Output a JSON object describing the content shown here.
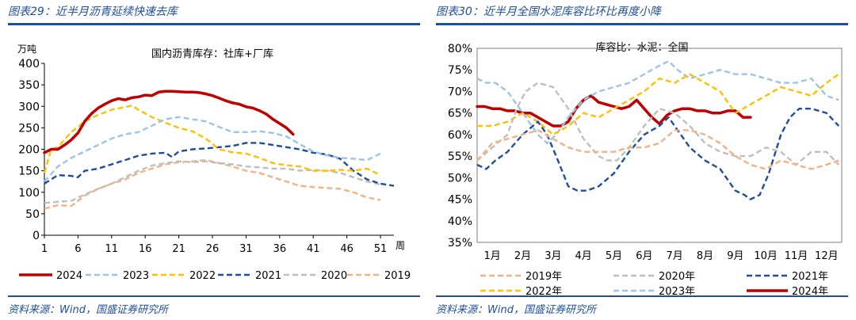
{
  "colors": {
    "brand": "#1f4e9a",
    "s2024": "#c00000",
    "s2023": "#9dc3e6",
    "s2022": "#ffc000",
    "s2021": "#1f4e9a",
    "s2020": "#bfbfbf",
    "s2019": "#f4b183"
  },
  "left": {
    "fig_title": "图表29：近半月沥青延续快速去库",
    "source": "资料来源：Wind，国盛证券研究所"
  },
  "right": {
    "fig_title": "图表30：近半月全国水泥库容比环比再度小降",
    "source": "资料来源：Wind，国盛证券研究所"
  },
  "chart_data": [
    {
      "type": "line",
      "title": "国内沥青库存：社库+厂库",
      "ylabel": "万吨",
      "xlabel": "周",
      "ylim": [
        0,
        400
      ],
      "yticks": [
        0,
        50,
        100,
        150,
        200,
        250,
        300,
        350,
        400
      ],
      "xlim": [
        1,
        53
      ],
      "xticks": [
        1,
        6,
        11,
        16,
        21,
        26,
        31,
        36,
        41,
        46,
        51
      ],
      "legend": "bottom",
      "series": [
        {
          "name": "2024",
          "color": "#c00000",
          "style": "solid",
          "width": 3.5,
          "x": [
            1,
            2,
            3,
            4,
            5,
            6,
            7,
            8,
            9,
            10,
            11,
            12,
            13,
            14,
            15,
            16,
            17,
            18,
            19,
            20,
            21,
            22,
            23,
            24,
            25,
            26,
            27,
            28,
            29,
            30,
            31,
            32,
            33,
            34,
            35,
            36,
            37,
            38
          ],
          "y": [
            192,
            200,
            200,
            210,
            222,
            238,
            265,
            283,
            296,
            305,
            313,
            318,
            315,
            320,
            322,
            326,
            325,
            333,
            335,
            335,
            334,
            333,
            333,
            332,
            329,
            325,
            319,
            313,
            308,
            305,
            299,
            296,
            290,
            282,
            270,
            260,
            250,
            235
          ]
        },
        {
          "name": "2023",
          "color": "#9dc3e6",
          "style": "dash",
          "x": [
            1,
            3,
            5,
            7,
            9,
            11,
            13,
            15,
            17,
            19,
            21,
            23,
            25,
            27,
            29,
            31,
            33,
            35,
            37,
            39,
            41,
            43,
            45,
            47,
            49,
            51
          ],
          "y": [
            125,
            160,
            180,
            195,
            210,
            225,
            235,
            240,
            255,
            270,
            275,
            270,
            265,
            252,
            240,
            240,
            242,
            238,
            230,
            212,
            195,
            186,
            180,
            178,
            175,
            190
          ]
        },
        {
          "name": "2022",
          "color": "#ffc000",
          "style": "dash",
          "x": [
            1,
            2,
            3,
            5,
            7,
            9,
            11,
            13,
            14,
            15,
            17,
            19,
            21,
            23,
            25,
            27,
            29,
            31,
            33,
            35,
            37,
            39,
            41,
            43,
            45,
            47,
            49,
            51
          ],
          "y": [
            145,
            200,
            205,
            240,
            265,
            280,
            292,
            298,
            302,
            292,
            275,
            262,
            250,
            242,
            225,
            200,
            193,
            190,
            180,
            168,
            163,
            160,
            150,
            150,
            152,
            150,
            155,
            140
          ]
        },
        {
          "name": "2021",
          "color": "#1f4e9a",
          "style": "dash",
          "x": [
            1,
            3,
            5,
            6,
            7,
            9,
            11,
            13,
            15,
            17,
            19,
            20,
            21,
            23,
            25,
            27,
            29,
            31,
            33,
            35,
            37,
            39,
            41,
            43,
            45,
            47,
            49,
            51,
            53
          ],
          "y": [
            120,
            140,
            138,
            135,
            150,
            155,
            165,
            175,
            185,
            190,
            192,
            182,
            195,
            200,
            202,
            205,
            208,
            215,
            215,
            210,
            205,
            200,
            192,
            188,
            178,
            150,
            130,
            120,
            115
          ]
        },
        {
          "name": "2020",
          "color": "#bfbfbf",
          "style": "dash",
          "x": [
            1,
            3,
            5,
            7,
            9,
            11,
            13,
            15,
            17,
            19,
            21,
            23,
            25,
            27,
            29,
            31,
            33,
            35,
            37,
            39,
            41,
            43,
            45,
            47,
            49,
            51
          ],
          "y": [
            75,
            78,
            80,
            95,
            108,
            120,
            135,
            150,
            162,
            168,
            172,
            170,
            172,
            168,
            165,
            160,
            158,
            155,
            155,
            150,
            152,
            150,
            145,
            135,
            125,
            118
          ]
        },
        {
          "name": "2019",
          "color": "#f4b183",
          "style": "dash",
          "x": [
            1,
            3,
            5,
            7,
            9,
            11,
            13,
            15,
            17,
            19,
            21,
            23,
            25,
            27,
            29,
            31,
            33,
            35,
            37,
            39,
            41,
            43,
            45,
            47,
            49,
            51
          ],
          "y": [
            62,
            70,
            68,
            92,
            108,
            120,
            130,
            145,
            155,
            165,
            170,
            172,
            175,
            168,
            160,
            150,
            145,
            135,
            125,
            115,
            112,
            110,
            108,
            100,
            88,
            82
          ]
        }
      ]
    },
    {
      "type": "line",
      "title": "库容比：水泥：全国",
      "ylim": [
        35,
        80
      ],
      "yticks": [
        35,
        40,
        45,
        50,
        55,
        60,
        65,
        70,
        75,
        80
      ],
      "ytick_labels": [
        "35%",
        "40%",
        "45%",
        "50%",
        "55%",
        "60%",
        "65%",
        "70%",
        "75%",
        "80%"
      ],
      "xlim": [
        1,
        13
      ],
      "xticks": [
        1,
        2,
        3,
        4,
        5,
        6,
        7,
        8,
        9,
        10,
        11,
        12
      ],
      "xtick_labels": [
        "1月",
        "2月",
        "3月",
        "4月",
        "5月",
        "6月",
        "7月",
        "8月",
        "9月",
        "10月",
        "11月",
        "12月"
      ],
      "legend": "bottom",
      "series": [
        {
          "name": "2019年",
          "color": "#f4b183",
          "style": "dash",
          "x": [
            1,
            1.5,
            2,
            2.5,
            3,
            3.5,
            4,
            4.5,
            5,
            5.5,
            6,
            6.5,
            7,
            7.5,
            8,
            8.5,
            9,
            9.5,
            10,
            10.5,
            11,
            11.5,
            12,
            12.5,
            12.9
          ],
          "y": [
            54,
            58,
            59,
            60,
            61,
            59,
            57,
            56,
            56,
            56,
            57,
            57,
            58,
            61,
            61,
            60,
            58,
            55,
            53,
            52,
            54,
            53,
            52,
            53,
            54
          ]
        },
        {
          "name": "2020年",
          "color": "#bfbfbf",
          "style": "dash",
          "x": [
            1,
            1.5,
            2,
            2.3,
            2.6,
            3,
            3.5,
            4,
            4.5,
            5,
            5.3,
            5.6,
            6,
            6.5,
            7,
            7.5,
            8,
            8.5,
            9,
            9.5,
            10,
            10.5,
            11,
            11.5,
            12,
            12.5,
            12.9
          ],
          "y": [
            54,
            57,
            60,
            66,
            70,
            72,
            71,
            66,
            59,
            55,
            54,
            54,
            57,
            62,
            66,
            65,
            62,
            58,
            56,
            55,
            55,
            57,
            56,
            53,
            56,
            56,
            53
          ]
        },
        {
          "name": "2021年",
          "color": "#1f4e9a",
          "style": "dash",
          "x": [
            1,
            1.3,
            1.6,
            2,
            2.5,
            3,
            3.3,
            3.6,
            4,
            4.3,
            4.6,
            5,
            5.5,
            6,
            6.5,
            7,
            7.3,
            7.6,
            8,
            8.5,
            9,
            9.5,
            9.8,
            10,
            10.3,
            10.6,
            11,
            11.3,
            11.6,
            12,
            12.5,
            12.9
          ],
          "y": [
            53,
            52,
            54,
            56,
            60,
            63,
            60,
            55,
            48,
            47,
            47,
            48,
            51,
            56,
            60,
            62,
            64,
            61,
            57,
            54,
            52,
            47,
            46,
            45,
            46,
            51,
            60,
            64,
            66,
            66,
            65,
            62
          ]
        },
        {
          "name": "2022年",
          "color": "#ffc000",
          "style": "dash",
          "x": [
            1,
            1.5,
            2,
            2.5,
            3,
            3.5,
            4,
            4.5,
            5,
            5.5,
            6,
            6.5,
            7,
            7.5,
            8,
            8.5,
            9,
            9.5,
            10,
            10.5,
            11,
            11.5,
            12,
            12.5,
            12.9
          ],
          "y": [
            62,
            62,
            63,
            65,
            63,
            60,
            62,
            65,
            64,
            66,
            68,
            70,
            73,
            72,
            74,
            72,
            70,
            65,
            67,
            69,
            71,
            70,
            69,
            72,
            74
          ]
        },
        {
          "name": "2023年",
          "color": "#9dc3e6",
          "style": "dash",
          "x": [
            1,
            1.3,
            1.6,
            2,
            2.5,
            3,
            3.3,
            3.6,
            4,
            4.5,
            5,
            5.5,
            6,
            6.5,
            7,
            7.3,
            7.6,
            8,
            8.5,
            9,
            9.5,
            10,
            10.5,
            11,
            11.5,
            12,
            12.5,
            12.9
          ],
          "y": [
            73,
            72,
            72,
            70,
            65,
            60,
            58,
            60,
            64,
            68,
            70,
            71,
            72,
            74,
            76,
            77,
            75,
            73,
            74,
            75,
            74,
            74,
            73,
            72,
            72,
            73,
            69,
            68
          ]
        },
        {
          "name": "2024年",
          "color": "#c00000",
          "style": "solid",
          "width": 3.5,
          "x": [
            1,
            1.25,
            1.5,
            1.75,
            2,
            2.25,
            2.5,
            2.75,
            3,
            3.25,
            3.5,
            3.75,
            4,
            4.25,
            4.5,
            4.75,
            5,
            5.25,
            5.5,
            5.75,
            6,
            6.25,
            6.5,
            6.75,
            7,
            7.25,
            7.5,
            7.75,
            8,
            8.25,
            8.5,
            8.75,
            9,
            9.25,
            9.5,
            9.75,
            10
          ],
          "y": [
            66.5,
            66.5,
            66,
            66,
            65.5,
            65.5,
            65,
            65,
            64,
            63,
            62,
            62,
            63,
            66,
            68,
            69,
            67.5,
            67,
            66.5,
            66,
            66.5,
            68,
            66,
            64,
            62.5,
            64.5,
            65.5,
            66,
            66,
            65.5,
            65.5,
            65,
            65,
            65.5,
            65.5,
            64,
            64
          ]
        }
      ]
    }
  ]
}
